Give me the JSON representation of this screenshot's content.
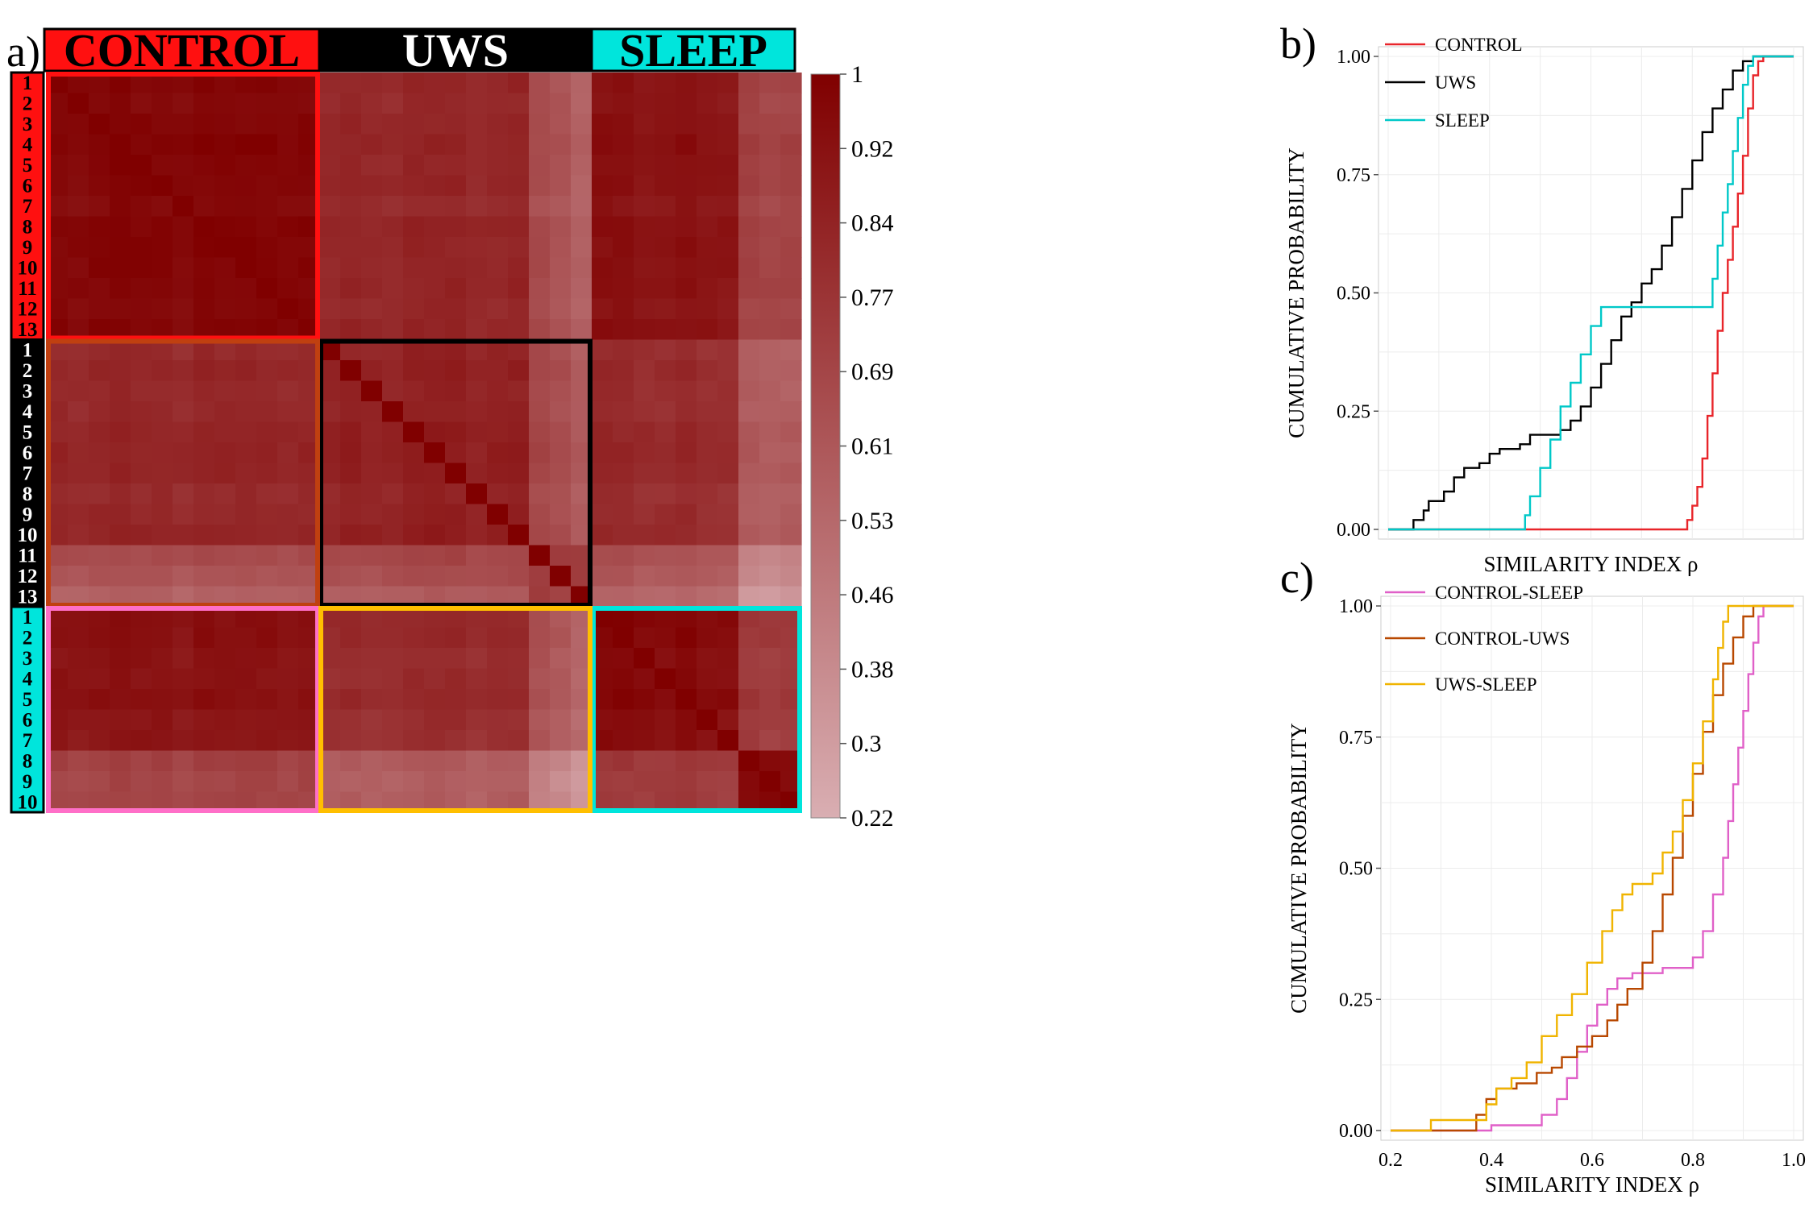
{
  "panels": {
    "a": "a)",
    "b": "b)",
    "c": "c)"
  },
  "colors": {
    "control": "#ff1010",
    "uws": "#000000",
    "sleep": "#00e5dc",
    "orange_box": "#c04010",
    "pink_box": "#ff6fc8",
    "gold_box": "#ffbf00",
    "map_high": "#800000",
    "map_low": "#d9aeb2",
    "control_sleep": "#e060c8",
    "control_uws": "#b84800",
    "uws_sleep": "#f0b400"
  },
  "chart_data": [
    {
      "type": "heatmap",
      "groups": [
        {
          "name": "CONTROL",
          "labels": [
            "1",
            "2",
            "3",
            "4",
            "5",
            "6",
            "7",
            "8",
            "9",
            "10",
            "11",
            "12",
            "13"
          ]
        },
        {
          "name": "UWS",
          "labels": [
            "1",
            "2",
            "3",
            "4",
            "5",
            "6",
            "7",
            "8",
            "9",
            "10",
            "11",
            "12",
            "13"
          ]
        },
        {
          "name": "SLEEP",
          "labels": [
            "1",
            "2",
            "3",
            "4",
            "5",
            "6",
            "7",
            "8",
            "9",
            "10"
          ]
        }
      ],
      "colorbar": {
        "min": 0.22,
        "max": 1,
        "ticks": [
          "1",
          "0.92",
          "0.84",
          "0.77",
          "0.69",
          "0.61",
          "0.53",
          "0.46",
          "0.38",
          "0.3",
          "0.22"
        ]
      },
      "block_mean_similarity": {
        "rows": [
          "CONTROL",
          "UWS",
          "SLEEP"
        ],
        "cols": [
          "CONTROL",
          "UWS",
          "SLEEP"
        ],
        "values": [
          [
            0.96,
            0.82,
            0.91
          ],
          [
            0.82,
            0.85,
            0.8
          ],
          [
            0.91,
            0.8,
            0.95
          ]
        ]
      }
    },
    {
      "type": "line",
      "title": "",
      "xlabel": "SIMILARITY INDEX ρ",
      "ylabel": "CUMULATIVE PROBABILITY",
      "xlim": [
        0.2,
        1.0
      ],
      "ylim": [
        0,
        1
      ],
      "yticks": [
        "0.00",
        "0.25",
        "0.50",
        "0.75",
        "1.00"
      ],
      "legend": "top-left",
      "series": [
        {
          "name": "CONTROL",
          "color": "#e8252a",
          "points": [
            [
              0.2,
              0.0
            ],
            [
              0.77,
              0.0
            ],
            [
              0.79,
              0.02
            ],
            [
              0.8,
              0.05
            ],
            [
              0.81,
              0.09
            ],
            [
              0.82,
              0.15
            ],
            [
              0.83,
              0.24
            ],
            [
              0.84,
              0.33
            ],
            [
              0.85,
              0.42
            ],
            [
              0.86,
              0.5
            ],
            [
              0.87,
              0.57
            ],
            [
              0.88,
              0.64
            ],
            [
              0.89,
              0.71
            ],
            [
              0.9,
              0.79
            ],
            [
              0.91,
              0.89
            ],
            [
              0.92,
              0.96
            ],
            [
              0.93,
              0.99
            ],
            [
              0.94,
              1.0
            ],
            [
              1.0,
              1.0
            ]
          ]
        },
        {
          "name": "UWS",
          "color": "#000000",
          "points": [
            [
              0.2,
              0.0
            ],
            [
              0.23,
              0.0
            ],
            [
              0.25,
              0.02
            ],
            [
              0.27,
              0.04
            ],
            [
              0.28,
              0.06
            ],
            [
              0.31,
              0.08
            ],
            [
              0.33,
              0.11
            ],
            [
              0.35,
              0.13
            ],
            [
              0.38,
              0.14
            ],
            [
              0.4,
              0.16
            ],
            [
              0.42,
              0.17
            ],
            [
              0.46,
              0.18
            ],
            [
              0.48,
              0.2
            ],
            [
              0.54,
              0.21
            ],
            [
              0.56,
              0.23
            ],
            [
              0.58,
              0.26
            ],
            [
              0.6,
              0.3
            ],
            [
              0.62,
              0.35
            ],
            [
              0.64,
              0.4
            ],
            [
              0.66,
              0.45
            ],
            [
              0.68,
              0.48
            ],
            [
              0.7,
              0.52
            ],
            [
              0.72,
              0.55
            ],
            [
              0.74,
              0.6
            ],
            [
              0.76,
              0.66
            ],
            [
              0.78,
              0.72
            ],
            [
              0.8,
              0.78
            ],
            [
              0.82,
              0.84
            ],
            [
              0.84,
              0.89
            ],
            [
              0.86,
              0.93
            ],
            [
              0.88,
              0.97
            ],
            [
              0.9,
              0.99
            ],
            [
              0.92,
              1.0
            ],
            [
              1.0,
              1.0
            ]
          ]
        },
        {
          "name": "SLEEP",
          "color": "#00c8c8",
          "points": [
            [
              0.2,
              0.0
            ],
            [
              0.46,
              0.0
            ],
            [
              0.47,
              0.03
            ],
            [
              0.48,
              0.07
            ],
            [
              0.5,
              0.13
            ],
            [
              0.52,
              0.19
            ],
            [
              0.54,
              0.26
            ],
            [
              0.56,
              0.31
            ],
            [
              0.58,
              0.37
            ],
            [
              0.6,
              0.43
            ],
            [
              0.62,
              0.47
            ],
            [
              0.82,
              0.47
            ],
            [
              0.83,
              0.47
            ],
            [
              0.84,
              0.53
            ],
            [
              0.85,
              0.6
            ],
            [
              0.86,
              0.67
            ],
            [
              0.87,
              0.73
            ],
            [
              0.88,
              0.8
            ],
            [
              0.89,
              0.87
            ],
            [
              0.9,
              0.94
            ],
            [
              0.91,
              0.98
            ],
            [
              0.92,
              1.0
            ],
            [
              1.0,
              1.0
            ]
          ]
        }
      ]
    },
    {
      "type": "line",
      "title": "",
      "xlabel": "SIMILARITY INDEX ρ",
      "ylabel": "CUMULATIVE PROBABILITY",
      "xlim": [
        0.2,
        1.0
      ],
      "ylim": [
        0,
        1
      ],
      "xticks": [
        "0.2",
        "0.4",
        "0.6",
        "0.8",
        "1.0"
      ],
      "yticks": [
        "0.00",
        "0.25",
        "0.50",
        "0.75",
        "1.00"
      ],
      "legend": "top-left",
      "series": [
        {
          "name": "CONTROL-SLEEP",
          "color": "#e060c8",
          "points": [
            [
              0.2,
              0.0
            ],
            [
              0.39,
              0.0
            ],
            [
              0.4,
              0.01
            ],
            [
              0.48,
              0.01
            ],
            [
              0.5,
              0.03
            ],
            [
              0.53,
              0.06
            ],
            [
              0.55,
              0.1
            ],
            [
              0.57,
              0.15
            ],
            [
              0.59,
              0.2
            ],
            [
              0.61,
              0.24
            ],
            [
              0.63,
              0.27
            ],
            [
              0.65,
              0.29
            ],
            [
              0.68,
              0.3
            ],
            [
              0.72,
              0.3
            ],
            [
              0.74,
              0.31
            ],
            [
              0.78,
              0.31
            ],
            [
              0.8,
              0.33
            ],
            [
              0.82,
              0.38
            ],
            [
              0.84,
              0.45
            ],
            [
              0.86,
              0.52
            ],
            [
              0.87,
              0.59
            ],
            [
              0.88,
              0.66
            ],
            [
              0.89,
              0.73
            ],
            [
              0.9,
              0.8
            ],
            [
              0.91,
              0.87
            ],
            [
              0.92,
              0.93
            ],
            [
              0.93,
              0.98
            ],
            [
              0.94,
              1.0
            ],
            [
              1.0,
              1.0
            ]
          ]
        },
        {
          "name": "CONTROL-UWS",
          "color": "#b84800",
          "points": [
            [
              0.2,
              0.0
            ],
            [
              0.35,
              0.0
            ],
            [
              0.37,
              0.03
            ],
            [
              0.39,
              0.06
            ],
            [
              0.41,
              0.08
            ],
            [
              0.45,
              0.09
            ],
            [
              0.49,
              0.11
            ],
            [
              0.52,
              0.12
            ],
            [
              0.54,
              0.14
            ],
            [
              0.57,
              0.16
            ],
            [
              0.6,
              0.18
            ],
            [
              0.63,
              0.21
            ],
            [
              0.65,
              0.24
            ],
            [
              0.67,
              0.27
            ],
            [
              0.7,
              0.32
            ],
            [
              0.72,
              0.38
            ],
            [
              0.74,
              0.45
            ],
            [
              0.76,
              0.52
            ],
            [
              0.78,
              0.6
            ],
            [
              0.8,
              0.68
            ],
            [
              0.82,
              0.76
            ],
            [
              0.84,
              0.83
            ],
            [
              0.86,
              0.89
            ],
            [
              0.88,
              0.94
            ],
            [
              0.9,
              0.98
            ],
            [
              0.92,
              1.0
            ],
            [
              1.0,
              1.0
            ]
          ]
        },
        {
          "name": "UWS-SLEEP",
          "color": "#f0b400",
          "points": [
            [
              0.2,
              0.0
            ],
            [
              0.27,
              0.0
            ],
            [
              0.28,
              0.02
            ],
            [
              0.36,
              0.02
            ],
            [
              0.39,
              0.05
            ],
            [
              0.41,
              0.08
            ],
            [
              0.44,
              0.1
            ],
            [
              0.47,
              0.13
            ],
            [
              0.5,
              0.18
            ],
            [
              0.53,
              0.22
            ],
            [
              0.56,
              0.26
            ],
            [
              0.59,
              0.32
            ],
            [
              0.62,
              0.38
            ],
            [
              0.64,
              0.42
            ],
            [
              0.66,
              0.45
            ],
            [
              0.68,
              0.47
            ],
            [
              0.7,
              0.47
            ],
            [
              0.72,
              0.49
            ],
            [
              0.74,
              0.53
            ],
            [
              0.76,
              0.57
            ],
            [
              0.78,
              0.63
            ],
            [
              0.8,
              0.7
            ],
            [
              0.82,
              0.78
            ],
            [
              0.84,
              0.86
            ],
            [
              0.85,
              0.92
            ],
            [
              0.86,
              0.97
            ],
            [
              0.87,
              1.0
            ],
            [
              1.0,
              1.0
            ]
          ]
        }
      ]
    }
  ]
}
